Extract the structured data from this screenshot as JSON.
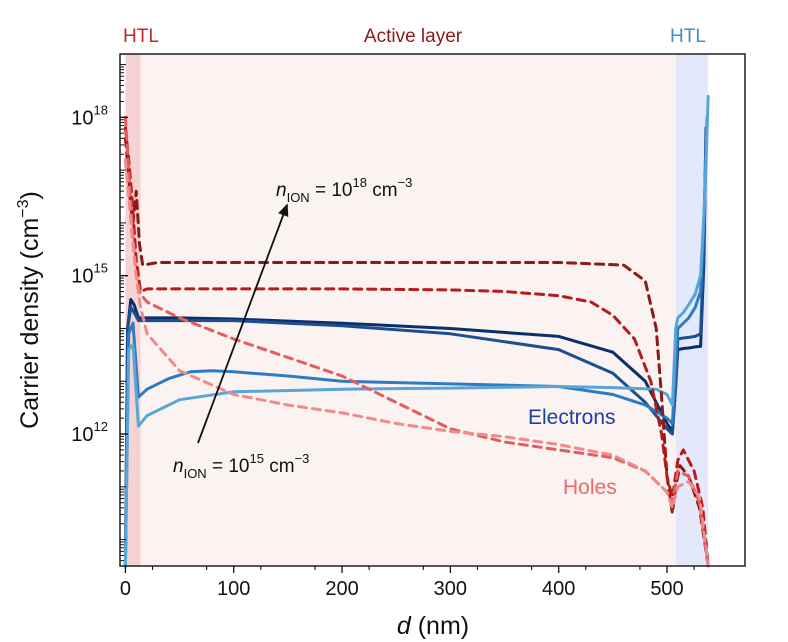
{
  "chart_data": {
    "type": "line",
    "xlabel_italic": "d",
    "xlabel_unit": "(nm)",
    "ylabel": "Carrier density (cm",
    "ylabel_sup": "−3",
    "ylabel_close": ")",
    "y_scale": "log",
    "xlim": [
      -5,
      572
    ],
    "ylim_log10": [
      9.5,
      19.2
    ],
    "x_ticks": [
      0,
      100,
      200,
      300,
      400,
      500
    ],
    "y_ticks": [
      {
        "value_log10": 12,
        "base": "10",
        "exp": "12"
      },
      {
        "value_log10": 15,
        "base": "10",
        "exp": "15"
      },
      {
        "value_log10": 18,
        "base": "10",
        "exp": "18"
      }
    ],
    "regions": [
      {
        "label": "HTL",
        "x_range": [
          0,
          14
        ],
        "color": "#c62828"
      },
      {
        "label": "Active layer",
        "x_range": [
          14,
          508
        ],
        "color": "#8b1a1a"
      },
      {
        "label": "HTL",
        "x_range": [
          508,
          538
        ],
        "color": "#3d8fd1"
      }
    ],
    "annotations": {
      "high": {
        "n": "n",
        "sub": "ION",
        "mid": " = 10",
        "exp": "18",
        "unit": " cm",
        "unit_exp": "−3"
      },
      "low": {
        "n": "n",
        "sub": "ION",
        "mid": " = 10",
        "exp": "15",
        "unit": " cm",
        "unit_exp": "−3"
      }
    },
    "legend": [
      {
        "label": "Electrons",
        "color": "#1f3f9e"
      },
      {
        "label": "Holes",
        "color": "#ee6a6a"
      }
    ],
    "series": [
      {
        "name": "Electrons, nION = 1e18",
        "kind": "electrons",
        "color": "#0b2f6b",
        "x": [
          0,
          2,
          5,
          8,
          12,
          20,
          50,
          100,
          200,
          300,
          400,
          450,
          480,
          500,
          505,
          508,
          510,
          515,
          520,
          526,
          531,
          534,
          536
        ],
        "log10": [
          9.5,
          14.0,
          14.55,
          14.45,
          14.2,
          14.2,
          14.2,
          14.18,
          14.1,
          14.0,
          13.85,
          13.55,
          13.0,
          12.2,
          12.05,
          12.9,
          13.6,
          13.62,
          13.63,
          13.65,
          13.66,
          15.2,
          17.6
        ]
      },
      {
        "name": "Electrons, nION ~ 1e17",
        "kind": "electrons",
        "color": "#1d4f8f",
        "x": [
          0,
          2,
          5,
          8,
          12,
          20,
          50,
          100,
          200,
          300,
          400,
          450,
          480,
          500,
          505,
          508,
          510,
          515,
          520,
          526,
          531,
          534,
          536
        ],
        "log10": [
          9.5,
          14.0,
          14.4,
          14.3,
          14.15,
          14.15,
          14.15,
          14.15,
          14.05,
          13.9,
          13.6,
          13.15,
          12.6,
          12.1,
          12.0,
          12.9,
          13.8,
          13.82,
          13.83,
          13.85,
          13.9,
          15.5,
          17.8
        ]
      },
      {
        "name": "Electrons, nION ~ 1e16",
        "kind": "electrons",
        "color": "#2f7bc2",
        "x": [
          0,
          3,
          7,
          12,
          20,
          40,
          60,
          80,
          100,
          150,
          200,
          300,
          400,
          450,
          480,
          500,
          505,
          508,
          510,
          515,
          520,
          526,
          531,
          534,
          537
        ],
        "log10": [
          9.5,
          13.9,
          14.1,
          12.7,
          12.85,
          13.05,
          13.18,
          13.2,
          13.18,
          13.1,
          13.0,
          12.95,
          12.9,
          12.75,
          12.55,
          12.3,
          12.2,
          13.3,
          14.0,
          14.1,
          14.2,
          14.4,
          14.7,
          16.0,
          18.0
        ]
      },
      {
        "name": "Electrons, nION = 1e15",
        "kind": "electrons",
        "color": "#5aa5d8",
        "x": [
          0,
          3,
          7,
          12,
          20,
          50,
          100,
          200,
          300,
          400,
          450,
          490,
          500,
          505,
          508,
          510,
          515,
          520,
          526,
          531,
          535,
          538
        ],
        "log10": [
          9.5,
          13.6,
          13.7,
          12.15,
          12.35,
          12.65,
          12.8,
          12.85,
          12.87,
          12.9,
          12.88,
          12.85,
          12.75,
          12.55,
          14.0,
          14.2,
          14.3,
          14.45,
          14.65,
          15.0,
          16.5,
          18.4
        ]
      },
      {
        "name": "Holes, nION = 1e18",
        "kind": "holes",
        "color": "#8b1a1a",
        "x": [
          0,
          3,
          5,
          7,
          10,
          13,
          16,
          30,
          100,
          200,
          300,
          400,
          460,
          480,
          490,
          495,
          500,
          505,
          508,
          512,
          520,
          530,
          538
        ],
        "log10": [
          17.6,
          16.9,
          16.3,
          16.0,
          16.6,
          15.6,
          15.2,
          15.25,
          15.25,
          15.25,
          15.25,
          15.25,
          15.2,
          14.9,
          14.0,
          12.7,
          11.2,
          10.5,
          11.0,
          11.4,
          11.2,
          10.6,
          9.5
        ]
      },
      {
        "name": "Holes, nION ~ 1e17",
        "kind": "holes",
        "color": "#b71c1c",
        "x": [
          0,
          3,
          6,
          10,
          14,
          20,
          100,
          200,
          300,
          350,
          400,
          430,
          450,
          470,
          485,
          495,
          500,
          505,
          510,
          515,
          525,
          533,
          538
        ],
        "log10": [
          17.8,
          17.2,
          16.5,
          15.3,
          14.7,
          14.75,
          14.75,
          14.75,
          14.73,
          14.7,
          14.62,
          14.5,
          14.25,
          13.8,
          13.0,
          12.0,
          11.2,
          10.8,
          11.5,
          11.7,
          11.3,
          10.6,
          9.5
        ]
      },
      {
        "name": "Holes, nION ~ 1e16",
        "kind": "holes",
        "color": "#e35d5d",
        "x": [
          0,
          3,
          6,
          10,
          14,
          20,
          50,
          100,
          150,
          200,
          250,
          300,
          350,
          400,
          450,
          480,
          500,
          505,
          510,
          520,
          530,
          538
        ],
        "log10": [
          18.0,
          17.0,
          16.0,
          15.0,
          14.65,
          14.5,
          14.2,
          13.8,
          13.45,
          13.1,
          12.6,
          12.1,
          11.85,
          11.7,
          11.55,
          11.3,
          10.9,
          10.7,
          11.3,
          11.2,
          10.7,
          9.5
        ]
      },
      {
        "name": "Holes, nION = 1e15",
        "kind": "holes",
        "color": "#f08a8a",
        "x": [
          0,
          3,
          6,
          10,
          14,
          20,
          50,
          100,
          150,
          200,
          250,
          300,
          350,
          400,
          450,
          480,
          500,
          505,
          510,
          520,
          530,
          538
        ],
        "log10": [
          17.2,
          16.5,
          15.8,
          15.0,
          14.4,
          13.9,
          13.2,
          12.75,
          12.55,
          12.4,
          12.2,
          12.05,
          11.95,
          11.8,
          11.6,
          11.3,
          10.9,
          10.6,
          11.0,
          11.1,
          10.8,
          9.5
        ]
      }
    ]
  }
}
